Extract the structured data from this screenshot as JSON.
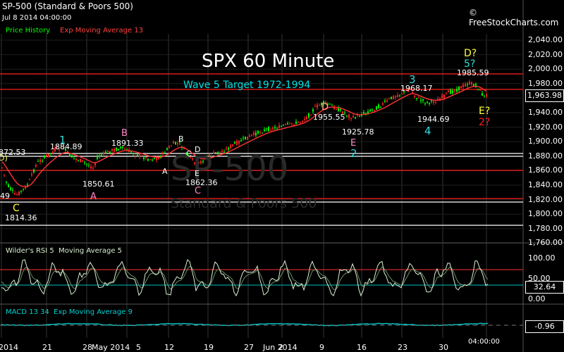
{
  "header": {
    "symbol_title": "SP-500 (Standard & Poors 500)",
    "datetime": "Jul 8 2014 04:00:00",
    "brand": "© FreeStockCharts.com",
    "legend_price": "Price History",
    "legend_ema": "Exp Moving Average 13"
  },
  "colors": {
    "price_legend": "#00ff00",
    "ema": "#ff3333",
    "grid": "#333333",
    "resistance": "#ff2020",
    "support": "#ffffff",
    "rsi_line": "#d8f0d0",
    "rsi_band_high": "#ff3030",
    "rsi_band_low": "#00c0c0",
    "macd": "#00c0c0"
  },
  "chart": {
    "title": "SPX 60 Minute",
    "target_note": "Wave 5 Target 1972-1994",
    "watermark_big": "SP-500",
    "watermark_small": "Standard & Poors 500",
    "current_price": "1,963.98"
  },
  "annotations": {
    "p1": "872.53",
    "p2": "1884.89",
    "p3": "1891.33",
    "p4": "1850.61",
    "p5": "1862.36",
    "p6": "1814.36",
    "p7": "1955.55",
    "p8": "1925.78",
    "p9": "1968.17",
    "p10": "1944.69",
    "p11": "1985.59",
    "p12": "49",
    "w1": "1",
    "wB1": "B",
    "wA1": "A",
    "wA2": "A",
    "wB2": "B",
    "wC1": "C",
    "wD1": "D",
    "wE1": "E",
    "wC2": "C",
    "wC3": "C",
    "wD2": "D",
    "wE2": "E",
    "w2": "2",
    "w3": "3",
    "w4": "4",
    "wD3": "D?",
    "w5": "5?",
    "wE3": "E?",
    "w2q": "2?",
    "wD0": "D)"
  },
  "price_axis": [
    "2,040.00",
    "2,020.00",
    "2,000.00",
    "1,980.00",
    "1,960.00",
    "1,940.00",
    "1,920.00",
    "1,900.00",
    "1,880.00",
    "1,860.00",
    "1,840.00",
    "1,820.00",
    "1,800.00",
    "1,780.00",
    "1,760.00"
  ],
  "rsi": {
    "label": "Wilder's RSI 5",
    "ma_label": "Moving Average 5",
    "axis": [
      "100.00",
      "50.00",
      "0.00"
    ],
    "value": "32.64"
  },
  "macd": {
    "label": "MACD 13 34",
    "ma_label": "Exp Moving Average 9",
    "value": "-0.96"
  },
  "dates": [
    "2014",
    "21",
    "28",
    "May 2014",
    "5",
    "12",
    "19",
    "27",
    "2",
    "Jun 2014",
    "9",
    "16",
    "23",
    "30"
  ],
  "time_label": "04:00:00"
}
